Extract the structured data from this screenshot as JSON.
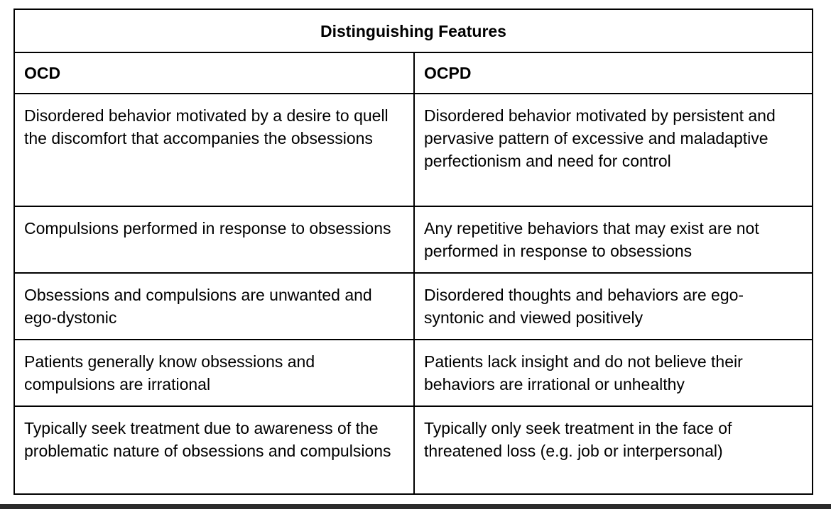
{
  "table": {
    "title": "Distinguishing Features",
    "headers": [
      "OCD",
      "OCPD"
    ],
    "rows": [
      [
        "Disordered behavior motivated by a desire to quell the discomfort that accompanies the obsessions",
        "Disordered behavior motivated by persistent and pervasive pattern of excessive and maladaptive perfectionism and need for control"
      ],
      [
        "Compulsions performed in response to obsessions",
        "Any repetitive behaviors that may exist are not performed in response to obsessions"
      ],
      [
        "Obsessions and compulsions are unwanted and ego-dystonic",
        "Disordered thoughts and behaviors are ego-syntonic and viewed positively"
      ],
      [
        "Patients generally know obsessions and compulsions are irrational",
        "Patients lack insight and do not believe their behaviors are irrational or unhealthy"
      ],
      [
        "Typically seek treatment due to awareness of the problematic nature of obsessions and compulsions",
        "Typically only seek treatment in the face of threatened loss (e.g. job or interpersonal)"
      ]
    ]
  }
}
